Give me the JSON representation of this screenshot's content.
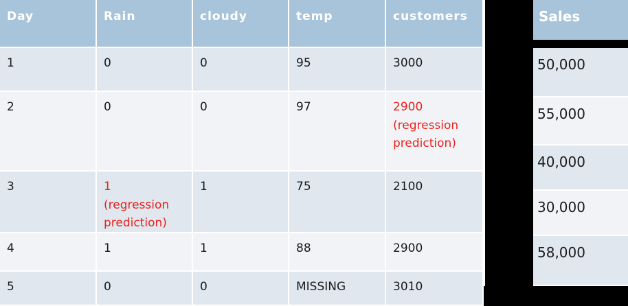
{
  "table": {
    "headers": [
      "Day",
      "Rain",
      "cloudy",
      "temp",
      "customers"
    ],
    "rows": [
      {
        "day": "1",
        "rain": "0",
        "cloudy": "0",
        "temp": "95",
        "customers": "3000"
      },
      {
        "day": "2",
        "rain": "0",
        "cloudy": "0",
        "temp": "97",
        "customers": "2900",
        "customers_note": "(regression prediction)"
      },
      {
        "day": "3",
        "rain": "1",
        "rain_note": "(regression prediction)",
        "cloudy": "1",
        "temp": "75",
        "customers": "2100"
      },
      {
        "day": "4",
        "rain": "1",
        "cloudy": "1",
        "temp": "88",
        "customers": "2900"
      },
      {
        "day": "5",
        "rain": "0",
        "cloudy": "0",
        "temp": "MISSING",
        "customers": "3010"
      }
    ]
  },
  "sales": {
    "header": "Sales",
    "values": [
      "50,000",
      "55,000",
      "40,000",
      "30,000",
      "58,000"
    ]
  },
  "colors": {
    "header_bg": "#a8c4da",
    "row_dark": "#e1e7ef",
    "row_light": "#f1f3f7",
    "highlight_red": "#e8221c",
    "background": "#000000"
  }
}
